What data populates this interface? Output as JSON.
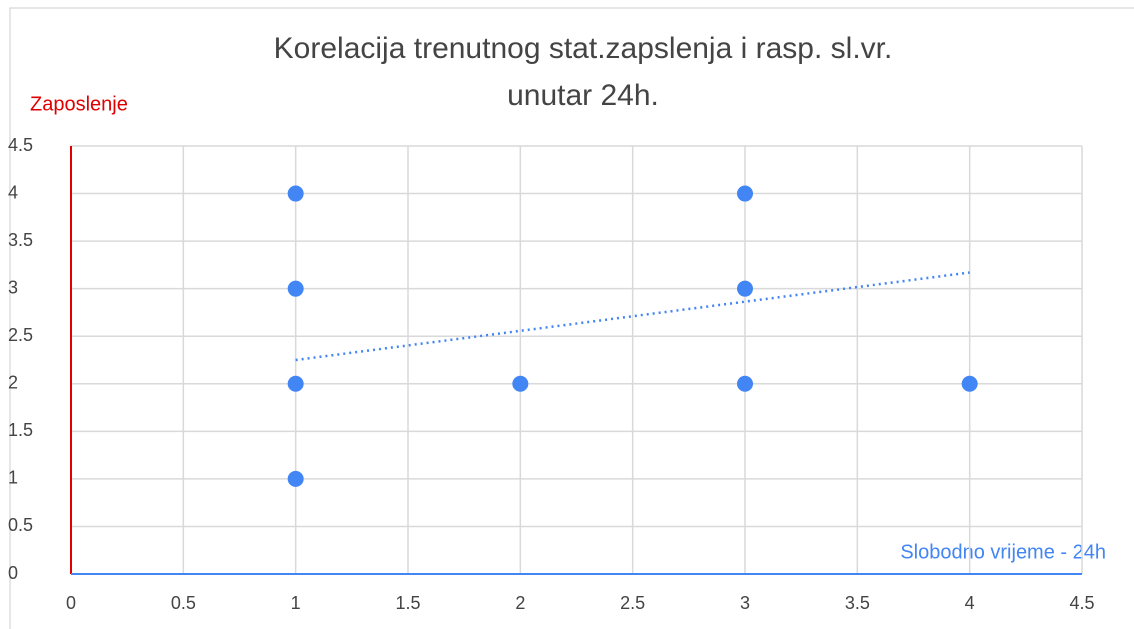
{
  "chart_data": {
    "type": "scatter",
    "title": "Korelacija trenutnog stat.zapslenja i rasp. sl.vr.",
    "title_line2": "unutar 24h.",
    "y_label": "Zaposlenje",
    "x_label": "Slobodno vrijeme - 24h",
    "y_label_color": "#e00000",
    "x_label_color": "#4285f4",
    "series": [
      {
        "name": "Zaposlenje",
        "color": "#4285f4",
        "x": [
          1,
          1,
          1,
          1,
          2,
          3,
          3,
          3,
          4
        ],
        "values": [
          4,
          3,
          2,
          1,
          2,
          4,
          3,
          2,
          2
        ]
      }
    ],
    "trendline": {
      "x": [
        1,
        4
      ],
      "values": [
        2.25,
        3.17
      ],
      "color": "#4285f4"
    },
    "xlim": [
      0,
      4.5
    ],
    "xticks": [
      0,
      0.5,
      1,
      1.5,
      2,
      2.5,
      3,
      3.5,
      4,
      4.5
    ],
    "ylim": [
      0,
      4.5
    ],
    "yticks": [
      0,
      0.5,
      1,
      1.5,
      2,
      2.5,
      3,
      3.5,
      4,
      4.5
    ],
    "grid": true
  }
}
